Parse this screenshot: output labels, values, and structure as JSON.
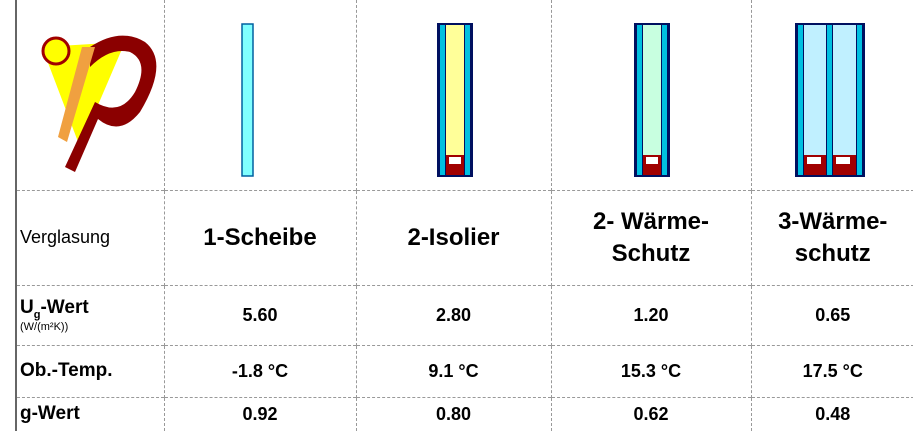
{
  "table": {
    "header_label": "Verglasung",
    "columns": [
      {
        "lines": [
          "1-Scheibe"
        ]
      },
      {
        "lines": [
          "2-Isolier"
        ]
      },
      {
        "lines": [
          "2- Wärme-",
          "Schutz"
        ]
      },
      {
        "lines": [
          "3-Wärme-",
          "schutz"
        ]
      }
    ],
    "rows": [
      {
        "label": {
          "symbol": "U",
          "subscript": "g",
          "suffix": "-Wert",
          "unit": "(W/(m²K))"
        },
        "values": [
          "5.60",
          "2.80",
          "1.20",
          "0.65"
        ]
      },
      {
        "label": {
          "text": "Ob.-Temp."
        },
        "values": [
          "-1.8 °C",
          "9.1 °C",
          "15.3 °C",
          "17.5 °C"
        ]
      },
      {
        "label": {
          "text": "g-Wert"
        },
        "values": [
          "0.92",
          "0.80",
          "0.62",
          "0.48"
        ]
      }
    ]
  }
}
